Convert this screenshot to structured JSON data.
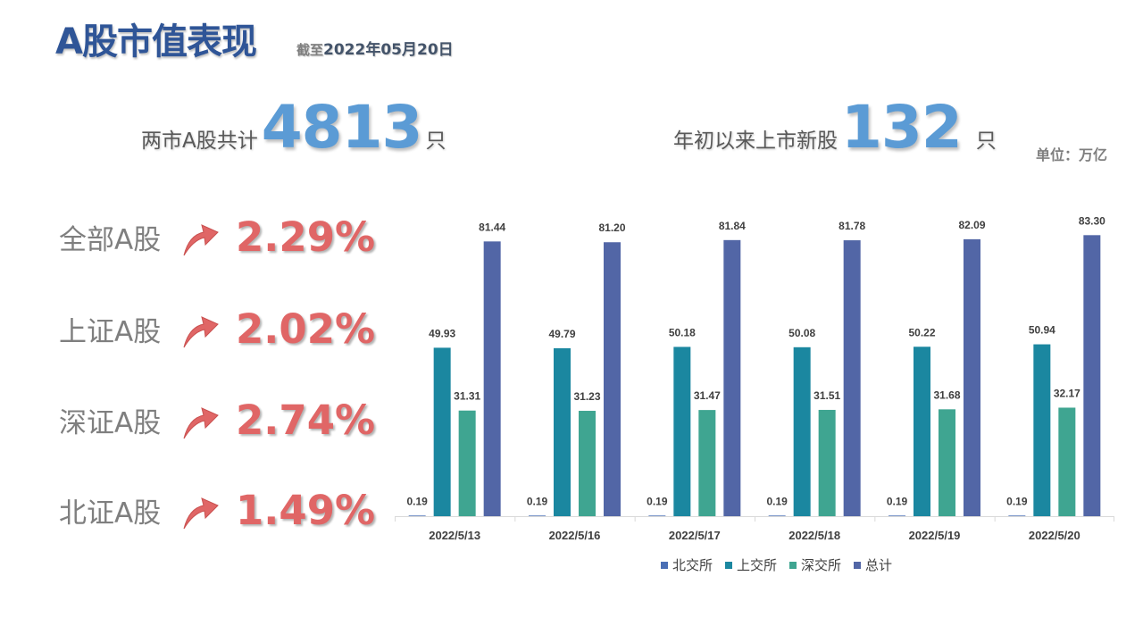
{
  "title": "A股市值表现",
  "subtitle_prefix": "截至",
  "subtitle_date": "2022年05月20日",
  "stats": {
    "total_label": "两市A股共计",
    "total_value": "4813",
    "total_unit": "只",
    "new_label": "年初以来上市新股",
    "new_value": "132",
    "new_unit": "只"
  },
  "unit_note": "单位：万亿",
  "indices": [
    {
      "name": "全部A股",
      "change": "2.29%",
      "icon": "up-arrow-icon"
    },
    {
      "name": "上证A股",
      "change": "2.02%",
      "icon": "up-arrow-icon"
    },
    {
      "name": "深证A股",
      "change": "2.74%",
      "icon": "up-arrow-icon"
    },
    {
      "name": "北证A股",
      "change": "1.49%",
      "icon": "up-arrow-icon"
    }
  ],
  "colors": {
    "title": "#2f5597",
    "stat_number": "#5b9bd5",
    "pct": "#e06666",
    "arrow": "#e06666"
  },
  "chart_data": {
    "type": "bar",
    "categories": [
      "2022/5/13",
      "2022/5/16",
      "2022/5/17",
      "2022/5/18",
      "2022/5/19",
      "2022/5/20"
    ],
    "series": [
      {
        "name": "北交所",
        "color": "#4a6fb5",
        "values": [
          0.19,
          0.19,
          0.19,
          0.19,
          0.19,
          0.19
        ]
      },
      {
        "name": "上交所",
        "color": "#1b87a0",
        "values": [
          49.93,
          49.79,
          50.18,
          50.08,
          50.22,
          50.94
        ]
      },
      {
        "name": "深交所",
        "color": "#3fa591",
        "values": [
          31.31,
          31.23,
          31.47,
          31.51,
          31.68,
          32.17
        ]
      },
      {
        "name": "总计",
        "color": "#5266a6",
        "values": [
          81.44,
          81.2,
          81.84,
          81.78,
          82.09,
          83.3
        ]
      }
    ],
    "ylim": [
      0,
      90
    ],
    "grid": false,
    "legend_position": "bottom"
  }
}
